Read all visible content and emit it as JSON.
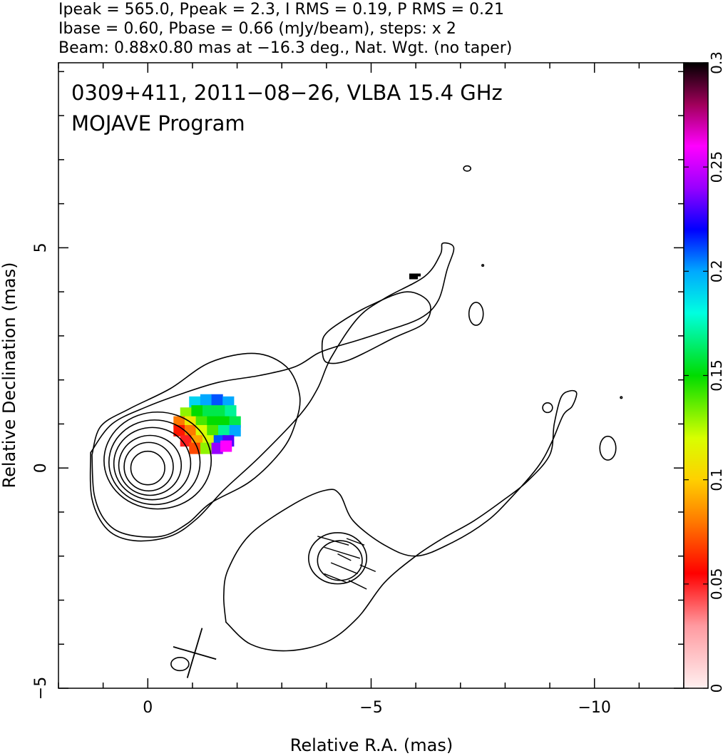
{
  "header": {
    "line1": "Ipeak = 565.0, Ppeak = 2.3, I RMS = 0.19, P RMS = 0.21",
    "line2": "Ibase = 0.60, Pbase = 0.66 (mJy/beam), steps: x 2",
    "line3": "Beam: 0.88x0.80 mas at −16.3 deg., Nat. Wgt. (no taper)"
  },
  "plot_title": {
    "line1": "0309+411, 2011−08−26, VLBA 15.4 GHz",
    "line2": "MOJAVE Program"
  },
  "chart_data": {
    "type": "heatmap",
    "description_source": "VLBA total intensity contour map with fractional polarization color overlay",
    "xlabel": "Relative R.A. (mas)",
    "ylabel": "Relative Declination (mas)",
    "xlim": [
      2.0,
      -12.0
    ],
    "ylim": [
      -5.0,
      9.2
    ],
    "x_ticks": [
      {
        "value": 0,
        "label": "0"
      },
      {
        "value": -5,
        "label": "−5"
      },
      {
        "value": -10,
        "label": "−10"
      }
    ],
    "y_ticks": [
      {
        "value": -5,
        "label": "−5"
      },
      {
        "value": 0,
        "label": "0"
      },
      {
        "value": 5,
        "label": "5"
      }
    ],
    "colorbar": {
      "range": [
        0,
        0.3
      ],
      "ticks": [
        {
          "value": 0,
          "label": "0"
        },
        {
          "value": 0.05,
          "label": "0.05"
        },
        {
          "value": 0.1,
          "label": "0.1"
        },
        {
          "value": 0.15,
          "label": "0.15"
        },
        {
          "value": 0.2,
          "label": "0.2"
        },
        {
          "value": 0.25,
          "label": "0.25"
        },
        {
          "value": 0.3,
          "label": "0.3"
        }
      ],
      "stops": [
        {
          "v": 0.0,
          "color": "#fff0f0"
        },
        {
          "v": 0.03,
          "color": "#ff9aa0"
        },
        {
          "v": 0.055,
          "color": "#ff0000"
        },
        {
          "v": 0.08,
          "color": "#ff7a00"
        },
        {
          "v": 0.1,
          "color": "#ffd000"
        },
        {
          "v": 0.12,
          "color": "#d8ff00"
        },
        {
          "v": 0.15,
          "color": "#00dc00"
        },
        {
          "v": 0.18,
          "color": "#00ffe0"
        },
        {
          "v": 0.2,
          "color": "#00a8ff"
        },
        {
          "v": 0.22,
          "color": "#0000ff"
        },
        {
          "v": 0.24,
          "color": "#9800ff"
        },
        {
          "v": 0.26,
          "color": "#ff00ff"
        },
        {
          "v": 0.28,
          "color": "#a0005a"
        },
        {
          "v": 0.3,
          "color": "#000000"
        }
      ]
    },
    "core_contours": [
      {
        "cx": 0.0,
        "cy": 0.0,
        "rx": 0.38,
        "ry": 0.38
      },
      {
        "cx": -0.02,
        "cy": 0.03,
        "rx": 0.55,
        "ry": 0.55
      },
      {
        "cx": -0.05,
        "cy": 0.06,
        "rx": 0.7,
        "ry": 0.68
      },
      {
        "cx": -0.1,
        "cy": 0.1,
        "rx": 0.86,
        "ry": 0.82
      },
      {
        "cx": -0.15,
        "cy": 0.13,
        "rx": 1.02,
        "ry": 0.96
      },
      {
        "cx": -0.22,
        "cy": 0.17,
        "rx": 1.2,
        "ry": 1.1
      }
    ],
    "outer_contours": [
      [
        [
          1.25,
          0.3
        ],
        [
          1.2,
          -0.6
        ],
        [
          0.95,
          -1.2
        ],
        [
          0.5,
          -1.5
        ],
        [
          -0.3,
          -1.55
        ],
        [
          -0.9,
          -1.25
        ],
        [
          -1.4,
          -0.8
        ],
        [
          -2.3,
          -0.3
        ],
        [
          -3.0,
          0.4
        ],
        [
          -3.3,
          1.0
        ],
        [
          -3.4,
          1.65
        ],
        [
          -3.1,
          2.3
        ],
        [
          -2.4,
          2.6
        ],
        [
          -1.4,
          2.4
        ],
        [
          -0.5,
          1.8
        ],
        [
          0.4,
          1.35
        ],
        [
          1.05,
          0.95
        ],
        [
          1.25,
          0.3
        ]
      ],
      [
        [
          1.28,
          0.35
        ],
        [
          1.25,
          -0.7
        ],
        [
          0.9,
          -1.4
        ],
        [
          0.3,
          -1.65
        ],
        [
          -0.5,
          -1.55
        ],
        [
          -1.1,
          -1.15
        ],
        [
          -1.7,
          -0.5
        ],
        [
          -2.5,
          0.25
        ],
        [
          -3.4,
          1.2
        ],
        [
          -3.8,
          1.8
        ],
        [
          -4.1,
          2.5
        ],
        [
          -4.7,
          3.4
        ],
        [
          -5.3,
          3.85
        ],
        [
          -6.2,
          4.35
        ],
        [
          -6.55,
          4.85
        ],
        [
          -6.6,
          5.1
        ],
        [
          -6.85,
          5.0
        ],
        [
          -6.7,
          4.5
        ],
        [
          -6.5,
          3.8
        ],
        [
          -6.1,
          3.4
        ],
        [
          -5.3,
          3.1
        ],
        [
          -4.7,
          2.9
        ],
        [
          -4.2,
          2.75
        ],
        [
          -3.8,
          2.6
        ],
        [
          -3.3,
          2.3
        ],
        [
          -2.5,
          2.1
        ],
        [
          -1.6,
          1.95
        ],
        [
          -0.8,
          1.7
        ],
        [
          0.0,
          1.4
        ],
        [
          0.8,
          1.0
        ],
        [
          1.28,
          0.35
        ]
      ]
    ],
    "jet_inner_contour": [
      [
        -3.9,
        2.7
      ],
      [
        -4.0,
        2.4
      ],
      [
        -4.5,
        2.45
      ],
      [
        -5.5,
        2.95
      ],
      [
        -6.2,
        3.3
      ],
      [
        -6.3,
        3.75
      ],
      [
        -5.8,
        4.0
      ],
      [
        -5.0,
        3.7
      ],
      [
        -4.3,
        3.3
      ],
      [
        -3.95,
        3.0
      ],
      [
        -3.9,
        2.7
      ]
    ],
    "southern_contour": [
      [
        -1.75,
        -3.5
      ],
      [
        -2.3,
        -4.0
      ],
      [
        -3.1,
        -4.15
      ],
      [
        -4.0,
        -3.95
      ],
      [
        -4.7,
        -3.4
      ],
      [
        -5.3,
        -2.6
      ],
      [
        -6.0,
        -2.0
      ],
      [
        -6.6,
        -1.6
      ],
      [
        -7.3,
        -1.2
      ],
      [
        -8.0,
        -0.7
      ],
      [
        -8.5,
        -0.3
      ],
      [
        -9.0,
        0.3
      ],
      [
        -9.1,
        1.0
      ],
      [
        -9.25,
        1.6
      ],
      [
        -9.45,
        1.75
      ],
      [
        -9.6,
        1.7
      ],
      [
        -9.5,
        1.4
      ],
      [
        -9.3,
        1.2
      ],
      [
        -9.05,
        0.6
      ],
      [
        -8.75,
        0.05
      ],
      [
        -8.2,
        -0.6
      ],
      [
        -7.6,
        -1.2
      ],
      [
        -6.8,
        -1.7
      ],
      [
        -6.0,
        -2.0
      ],
      [
        -5.3,
        -1.75
      ],
      [
        -4.6,
        -1.2
      ],
      [
        -4.3,
        -0.6
      ],
      [
        -4.0,
        -0.5
      ],
      [
        -3.3,
        -0.8
      ],
      [
        -2.3,
        -1.5
      ],
      [
        -1.8,
        -2.3
      ],
      [
        -1.7,
        -2.9
      ],
      [
        -1.75,
        -3.5
      ]
    ],
    "knot_outer": {
      "cx": -4.25,
      "cy": -2.05,
      "rx": 0.65,
      "ry": 0.58
    },
    "knot_inner": {
      "cx": -4.3,
      "cy": -2.1,
      "rx": 0.5,
      "ry": 0.45
    },
    "islands": [
      {
        "cx": -7.15,
        "cy": 6.8,
        "rx": 0.08,
        "ry": 0.06
      },
      {
        "cx": -7.5,
        "cy": 4.6,
        "rx": 0.02,
        "ry": 0.02
      },
      {
        "cx": -7.35,
        "cy": 3.5,
        "rx": 0.16,
        "ry": 0.26
      },
      {
        "cx": -8.95,
        "cy": 1.37,
        "rx": 0.11,
        "ry": 0.11
      },
      {
        "cx": -10.3,
        "cy": 0.45,
        "rx": 0.18,
        "ry": 0.27
      },
      {
        "cx": -10.6,
        "cy": 1.6,
        "rx": 0.02,
        "ry": 0.02
      },
      {
        "cx": -0.72,
        "cy": -4.45,
        "rx": 0.2,
        "ry": 0.15
      }
    ],
    "pol_pixels": [
      {
        "x": -1.05,
        "y": 1.5,
        "v": 0.19
      },
      {
        "x": -1.3,
        "y": 1.55,
        "v": 0.2
      },
      {
        "x": -1.55,
        "y": 1.55,
        "v": 0.21
      },
      {
        "x": -1.8,
        "y": 1.5,
        "v": 0.2
      },
      {
        "x": -0.85,
        "y": 1.25,
        "v": 0.13
      },
      {
        "x": -1.1,
        "y": 1.3,
        "v": 0.15
      },
      {
        "x": -1.35,
        "y": 1.3,
        "v": 0.16
      },
      {
        "x": -1.6,
        "y": 1.3,
        "v": 0.16
      },
      {
        "x": -1.85,
        "y": 1.3,
        "v": 0.17
      },
      {
        "x": -0.7,
        "y": 1.05,
        "v": 0.08
      },
      {
        "x": -0.95,
        "y": 1.05,
        "v": 0.11
      },
      {
        "x": -1.2,
        "y": 1.05,
        "v": 0.14
      },
      {
        "x": -1.45,
        "y": 1.05,
        "v": 0.15
      },
      {
        "x": -1.7,
        "y": 1.05,
        "v": 0.15
      },
      {
        "x": -1.95,
        "y": 1.05,
        "v": 0.16
      },
      {
        "x": -0.7,
        "y": 0.85,
        "v": 0.06
      },
      {
        "x": -0.95,
        "y": 0.85,
        "v": 0.08
      },
      {
        "x": -1.2,
        "y": 0.85,
        "v": 0.12
      },
      {
        "x": -1.45,
        "y": 0.85,
        "v": 0.14
      },
      {
        "x": -1.7,
        "y": 0.85,
        "v": 0.17
      },
      {
        "x": -1.95,
        "y": 0.85,
        "v": 0.2
      },
      {
        "x": -0.85,
        "y": 0.62,
        "v": 0.05
      },
      {
        "x": -1.1,
        "y": 0.62,
        "v": 0.09
      },
      {
        "x": -1.35,
        "y": 0.62,
        "v": 0.12
      },
      {
        "x": -1.6,
        "y": 0.62,
        "v": 0.21
      },
      {
        "x": -1.8,
        "y": 0.62,
        "v": 0.23
      },
      {
        "x": -1.05,
        "y": 0.45,
        "v": 0.07
      },
      {
        "x": -1.3,
        "y": 0.45,
        "v": 0.13
      },
      {
        "x": -1.55,
        "y": 0.45,
        "v": 0.24
      },
      {
        "x": -1.75,
        "y": 0.5,
        "v": 0.26
      }
    ],
    "pol_pixel_size": 0.25,
    "extra_mark": {
      "x": -5.95,
      "y": 4.35,
      "v": 0.3
    },
    "evpa_ticks": [
      [
        -3.8,
        -1.55,
        -4.5,
        -1.75
      ],
      [
        -3.95,
        -1.8,
        -4.75,
        -2.05
      ],
      [
        -4.1,
        -2.15,
        -4.7,
        -2.4
      ],
      [
        -3.95,
        -2.4,
        -4.45,
        -2.6
      ],
      [
        -4.5,
        -2.55,
        -4.9,
        -2.75
      ],
      [
        -4.45,
        -1.6,
        -4.85,
        -1.75
      ],
      [
        -4.25,
        -1.95,
        -4.55,
        -2.1
      ],
      [
        -4.75,
        -2.2,
        -5.1,
        -2.35
      ]
    ],
    "beam": {
      "major_mas": 0.88,
      "minor_mas": 0.8,
      "pa_deg": -16.3,
      "cx": -1.05,
      "cy": -4.2
    }
  }
}
